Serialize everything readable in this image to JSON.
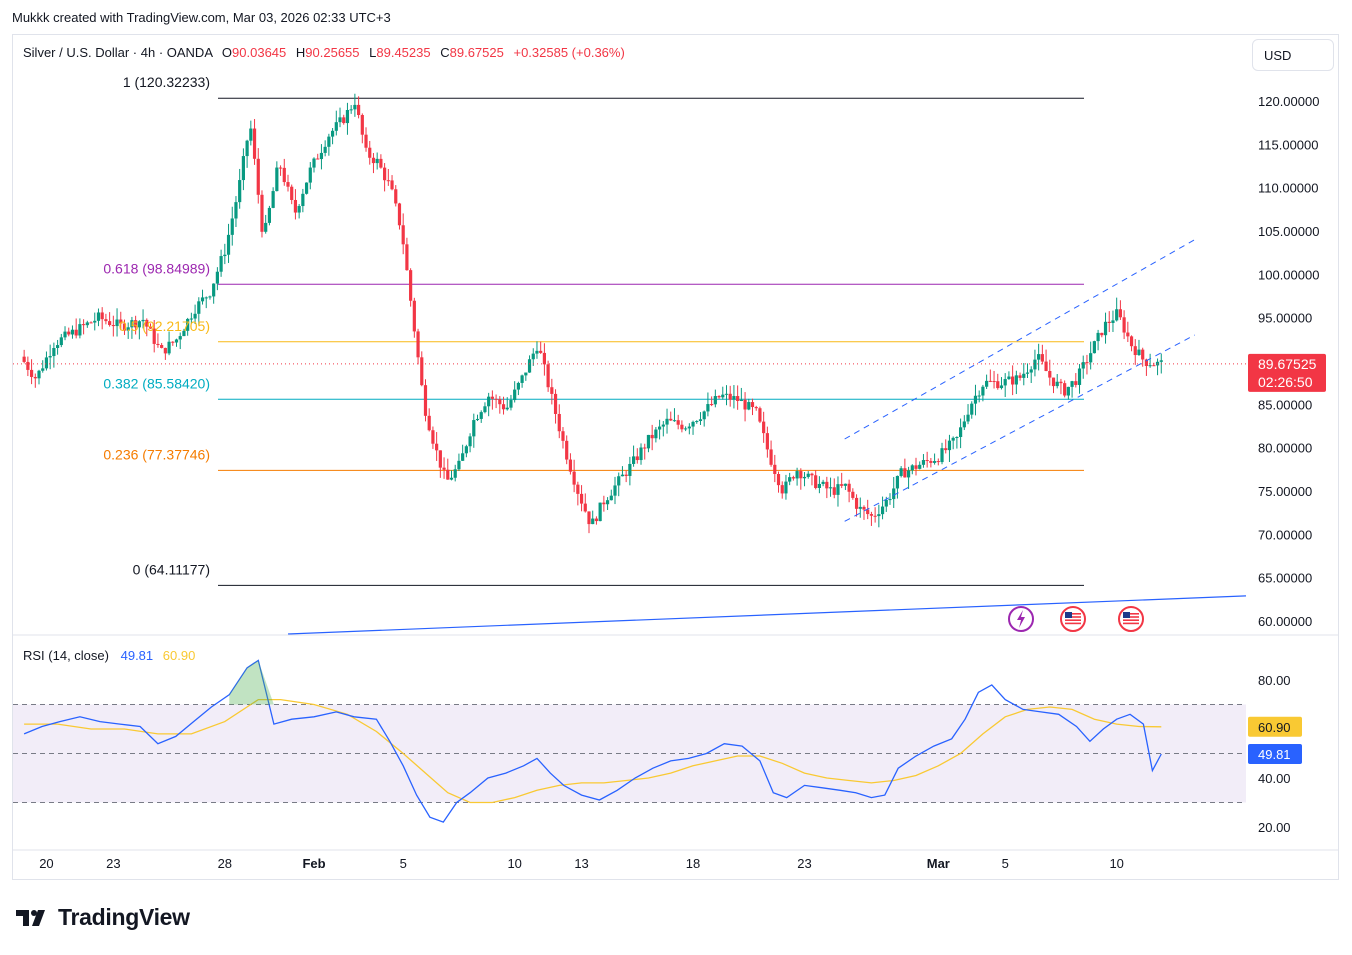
{
  "caption": "Mukkk created with TradingView.com, Mar 03, 2026 02:33 UTC+3",
  "header": {
    "symbol": "Silver / U.S. Dollar · 4h · OANDA",
    "open_label": "O",
    "open": "90.03645",
    "high_label": "H",
    "high": "90.25655",
    "low_label": "L",
    "low": "89.45235",
    "close_label": "C",
    "close": "89.67525",
    "change": "+0.32585 (+0.36%)"
  },
  "currency_button": "USD",
  "price_tag": {
    "value": "89.67525",
    "countdown": "02:26:50"
  },
  "fib_levels": [
    {
      "label": "1 (120.32233)",
      "price": 120.32233,
      "color": "#131722"
    },
    {
      "label": "0.618 (98.84989)",
      "price": 98.84989,
      "color": "#9c27b0"
    },
    {
      "label": "0.5 (92.21705)",
      "price": 92.21705,
      "color": "#f9b916"
    },
    {
      "label": "0.382 (85.58420)",
      "price": 85.5842,
      "color": "#00acc1"
    },
    {
      "label": "0.236 (77.37746)",
      "price": 77.37746,
      "color": "#f57c00"
    },
    {
      "label": "0 (64.11177)",
      "price": 64.11177,
      "color": "#131722"
    }
  ],
  "rsi": {
    "title": "RSI (14, close)",
    "rsi_value": "49.81",
    "ma_value": "60.90",
    "upper": 70,
    "middle": 50,
    "lower": 30,
    "rsi_color": "#2962ff",
    "ma_color": "#f9c933"
  },
  "brand": "TradingView",
  "chart_data": {
    "type": "candlestick",
    "title": "Silver / U.S. Dollar · 4h · OANDA",
    "y_ticks": [
      "120.00000",
      "115.00000",
      "110.00000",
      "105.00000",
      "100.00000",
      "95.00000",
      "90.00000",
      "85.00000",
      "80.00000",
      "75.00000",
      "70.00000",
      "65.00000",
      "60.00000"
    ],
    "ylim": [
      58.5,
      127.5
    ],
    "x_ticks": [
      "20",
      "23",
      "28",
      "Feb",
      "5",
      "10",
      "13",
      "18",
      "23",
      "Mar",
      "5",
      "10"
    ],
    "x_tick_days": [
      1,
      4,
      9,
      13,
      17,
      22,
      25,
      30,
      35,
      41,
      44,
      49
    ],
    "x_range_days": [
      -0.5,
      54.8
    ],
    "candle_path": [
      [
        0,
        90.5
      ],
      [
        0.7,
        88
      ],
      [
        1.5,
        92
      ],
      [
        2.5,
        93.5
      ],
      [
        3.5,
        95
      ],
      [
        4.5,
        94
      ],
      [
        5.5,
        94.8
      ],
      [
        6.3,
        91
      ],
      [
        7,
        92.5
      ],
      [
        7.8,
        96
      ],
      [
        8.5,
        98
      ],
      [
        9.2,
        103
      ],
      [
        9.8,
        110
      ],
      [
        10.3,
        117.5
      ],
      [
        10.9,
        104
      ],
      [
        11.6,
        113
      ],
      [
        12.3,
        107
      ],
      [
        13,
        112
      ],
      [
        13.8,
        116
      ],
      [
        14.5,
        118
      ],
      [
        15,
        120
      ],
      [
        15.5,
        114
      ],
      [
        16,
        113
      ],
      [
        16.6,
        110
      ],
      [
        17.1,
        105
      ],
      [
        17.6,
        95
      ],
      [
        18.1,
        85
      ],
      [
        18.6,
        80
      ],
      [
        19.1,
        76
      ],
      [
        19.7,
        78
      ],
      [
        20.3,
        83
      ],
      [
        21,
        86
      ],
      [
        21.8,
        84.5
      ],
      [
        22.5,
        88
      ],
      [
        23.2,
        92
      ],
      [
        23.8,
        86
      ],
      [
        24.4,
        80
      ],
      [
        25,
        75
      ],
      [
        25.6,
        71
      ],
      [
        26.2,
        74
      ],
      [
        26.8,
        76
      ],
      [
        27.4,
        78
      ],
      [
        28.2,
        81
      ],
      [
        29,
        83
      ],
      [
        29.8,
        82.5
      ],
      [
        30.6,
        84
      ],
      [
        31.4,
        86
      ],
      [
        32.2,
        85.5
      ],
      [
        33,
        84
      ],
      [
        33.6,
        79
      ],
      [
        34.2,
        75
      ],
      [
        34.8,
        77.5
      ],
      [
        35.6,
        76
      ],
      [
        36.4,
        75
      ],
      [
        37,
        75.5
      ],
      [
        37.6,
        73
      ],
      [
        38.2,
        72
      ],
      [
        38.9,
        74
      ],
      [
        39.5,
        77
      ],
      [
        40.3,
        78
      ],
      [
        41.2,
        79
      ],
      [
        42,
        81
      ],
      [
        42.6,
        85
      ],
      [
        43.2,
        87.5
      ],
      [
        44,
        87.5
      ],
      [
        44.8,
        88
      ],
      [
        45.6,
        90.5
      ],
      [
        46.2,
        88
      ],
      [
        46.8,
        86.5
      ],
      [
        47.4,
        88
      ],
      [
        48,
        91
      ],
      [
        48.6,
        94
      ],
      [
        49.2,
        95.5
      ],
      [
        49.8,
        92
      ],
      [
        50.4,
        90
      ],
      [
        51,
        89.67
      ]
    ],
    "channel_upper": {
      "from": [
        36.8,
        81.0
      ],
      "to": [
        52.5,
        104.0
      ]
    },
    "channel_lower": {
      "from": [
        36.8,
        71.5
      ],
      "to": [
        52.5,
        93.0
      ]
    },
    "long_trendline": {
      "from": [
        14.6,
        58.5
      ],
      "to": [
        54.8,
        62.9
      ]
    },
    "last_price": 89.67525,
    "rsi_series": [
      [
        0,
        58
      ],
      [
        0.8,
        61
      ],
      [
        1.6,
        63
      ],
      [
        2.5,
        65
      ],
      [
        3.4,
        63
      ],
      [
        4.3,
        62
      ],
      [
        5.2,
        61
      ],
      [
        6,
        54
      ],
      [
        6.8,
        57
      ],
      [
        7.6,
        63
      ],
      [
        8.4,
        69
      ],
      [
        9.2,
        74
      ],
      [
        10,
        85
      ],
      [
        10.5,
        88
      ],
      [
        11.2,
        62
      ],
      [
        12,
        64
      ],
      [
        13,
        65
      ],
      [
        14,
        67
      ],
      [
        14.8,
        65
      ],
      [
        15.8,
        64
      ],
      [
        16.4,
        55
      ],
      [
        17,
        45
      ],
      [
        17.6,
        33
      ],
      [
        18.2,
        24
      ],
      [
        18.8,
        22
      ],
      [
        19.4,
        30
      ],
      [
        20,
        34
      ],
      [
        20.8,
        40
      ],
      [
        21.6,
        42
      ],
      [
        22.4,
        45
      ],
      [
        23,
        48
      ],
      [
        23.6,
        42
      ],
      [
        24.2,
        37
      ],
      [
        25,
        33
      ],
      [
        25.8,
        31
      ],
      [
        26.6,
        35
      ],
      [
        27.4,
        40
      ],
      [
        28.2,
        44
      ],
      [
        29,
        47
      ],
      [
        29.8,
        48
      ],
      [
        30.6,
        50
      ],
      [
        31.4,
        54
      ],
      [
        32.2,
        53
      ],
      [
        33,
        47
      ],
      [
        33.6,
        34
      ],
      [
        34.2,
        32
      ],
      [
        35,
        37
      ],
      [
        35.8,
        36
      ],
      [
        36.6,
        35
      ],
      [
        37.3,
        34
      ],
      [
        38,
        32
      ],
      [
        38.6,
        33
      ],
      [
        39.2,
        44
      ],
      [
        40,
        49
      ],
      [
        40.8,
        53
      ],
      [
        41.6,
        56
      ],
      [
        42.2,
        64
      ],
      [
        42.8,
        75
      ],
      [
        43.4,
        78
      ],
      [
        44,
        72
      ],
      [
        44.8,
        68
      ],
      [
        45.6,
        67
      ],
      [
        46.4,
        66
      ],
      [
        47.2,
        61
      ],
      [
        47.8,
        55
      ],
      [
        48.4,
        60
      ],
      [
        49,
        64
      ],
      [
        49.6,
        66
      ],
      [
        50.2,
        62
      ],
      [
        50.6,
        43
      ],
      [
        51,
        49.81
      ]
    ],
    "rsi_ma_series": [
      [
        0,
        62
      ],
      [
        1.5,
        62
      ],
      [
        3,
        60
      ],
      [
        4.5,
        60
      ],
      [
        6,
        58
      ],
      [
        7.5,
        58
      ],
      [
        9,
        63
      ],
      [
        10.5,
        72
      ],
      [
        11.5,
        72
      ],
      [
        13,
        70
      ],
      [
        14.5,
        66
      ],
      [
        15.8,
        59
      ],
      [
        17,
        50
      ],
      [
        18,
        42
      ],
      [
        19,
        34
      ],
      [
        20,
        30
      ],
      [
        21,
        30
      ],
      [
        22,
        32
      ],
      [
        23,
        35
      ],
      [
        24,
        37
      ],
      [
        25,
        38
      ],
      [
        26,
        38
      ],
      [
        27,
        39
      ],
      [
        28,
        40
      ],
      [
        29,
        42
      ],
      [
        30,
        45
      ],
      [
        31,
        47
      ],
      [
        32,
        49
      ],
      [
        33,
        49
      ],
      [
        34,
        46
      ],
      [
        35,
        42
      ],
      [
        36,
        40
      ],
      [
        37,
        39
      ],
      [
        38,
        38
      ],
      [
        39,
        39
      ],
      [
        40,
        41
      ],
      [
        41,
        45
      ],
      [
        42,
        50
      ],
      [
        43,
        58
      ],
      [
        44,
        65
      ],
      [
        45,
        68
      ],
      [
        46,
        69
      ],
      [
        47,
        68
      ],
      [
        48,
        64
      ],
      [
        49,
        62
      ],
      [
        50,
        61
      ],
      [
        51,
        60.9
      ]
    ]
  }
}
